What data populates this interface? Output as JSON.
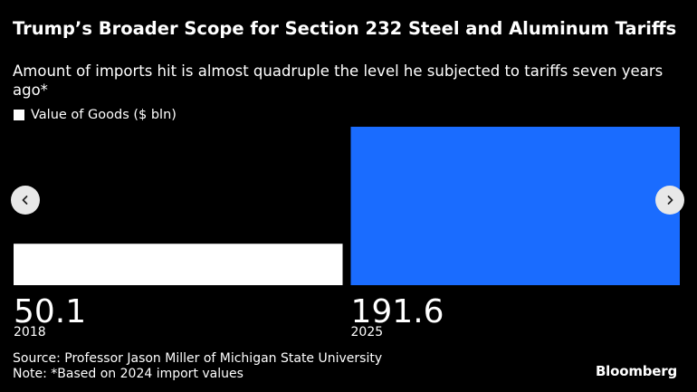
{
  "title": "Trump’s Broader Scope for Section 232 Steel and Aluminum Tariffs",
  "subtitle": "Amount of imports hit is almost quadruple the level he subjected to tariffs seven years ago*",
  "legend": {
    "label": "Value of Goods ($ bln)"
  },
  "nav": {
    "prev_icon": "chevron-left-icon",
    "next_icon": "chevron-right-icon"
  },
  "footer": {
    "source": "Source: Professor Jason Miller of Michigan State University",
    "note": "Note: *Based on 2024 import values"
  },
  "logo": "Bloomberg",
  "colors": {
    "background": "#000000",
    "bar_2018": "#ffffff",
    "bar_2025": "#1a6cff",
    "text": "#ffffff"
  },
  "chart_data": {
    "type": "bar",
    "categories": [
      "2018",
      "2025"
    ],
    "values": [
      50.1,
      191.6
    ],
    "value_labels": [
      "50.1",
      "191.6"
    ],
    "series": [
      {
        "name": "Value of Goods ($ bln)",
        "values": [
          50.1,
          191.6
        ]
      }
    ],
    "bar_colors": [
      "#ffffff",
      "#1a6cff"
    ],
    "ylim": [
      0,
      191.6
    ],
    "grid": false,
    "legend_position": "top-left"
  }
}
